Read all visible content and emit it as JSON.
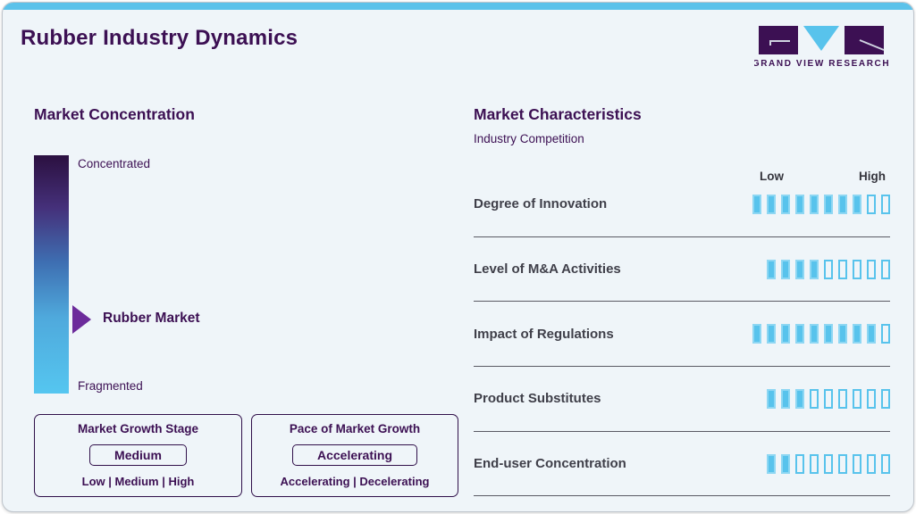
{
  "page": {
    "title": "Rubber Industry Dynamics"
  },
  "logo": {
    "brand": "GRAND VIEW RESEARCH"
  },
  "colors": {
    "accent_blue": "#58C3EC",
    "brand_purple": "#3C1053",
    "arrow_purple": "#6C2B9B",
    "gradient_top": "#2B1040",
    "gradient_bottom": "#55C6F0",
    "topbar_blue": "#5BC2EA",
    "card_bg": "#EFF5F9",
    "label_gray": "#3F3F49",
    "separator_gray": "#5A5A63"
  },
  "market_concentration": {
    "heading": "Market Concentration",
    "scale_top": "Concentrated",
    "scale_bottom": "Fragmented",
    "marker_label": "Rubber Market",
    "marker_position_pct": 69
  },
  "growth_stage_box": {
    "title": "Market Growth Stage",
    "value": "Medium",
    "options": "Low | Medium | High"
  },
  "pace_box": {
    "title": "Pace of Market Growth",
    "value": "Accelerating",
    "options": "Accelerating | Decelerating"
  },
  "market_characteristics": {
    "heading": "Market Characteristics",
    "subheading": "Industry Competition",
    "scale_low": "Low",
    "scale_high": "High",
    "rows": [
      {
        "label": "Degree of Innovation",
        "filled": 8,
        "total": 10
      },
      {
        "label": "Level of M&A Activities",
        "filled": 4,
        "total": 9
      },
      {
        "label": "Impact of Regulations",
        "filled": 9,
        "total": 10
      },
      {
        "label": "Product Substitutes",
        "filled": 3,
        "total": 9
      },
      {
        "label": "End-user Concentration",
        "filled": 2,
        "total": 9
      }
    ]
  },
  "chart_data": {
    "type": "bar",
    "title": "Market Characteristics",
    "subtitle": "Industry Competition",
    "categories": [
      "Degree of Innovation",
      "Level of M&A Activities",
      "Impact of Regulations",
      "Product Substitutes",
      "End-user Concentration"
    ],
    "values": [
      8,
      4,
      9,
      3,
      2
    ],
    "totals": [
      10,
      9,
      10,
      9,
      9
    ],
    "xlabel": "",
    "ylabel": "",
    "scale_labels": [
      "Low",
      "High"
    ],
    "legend_position": "none",
    "grid": false
  }
}
